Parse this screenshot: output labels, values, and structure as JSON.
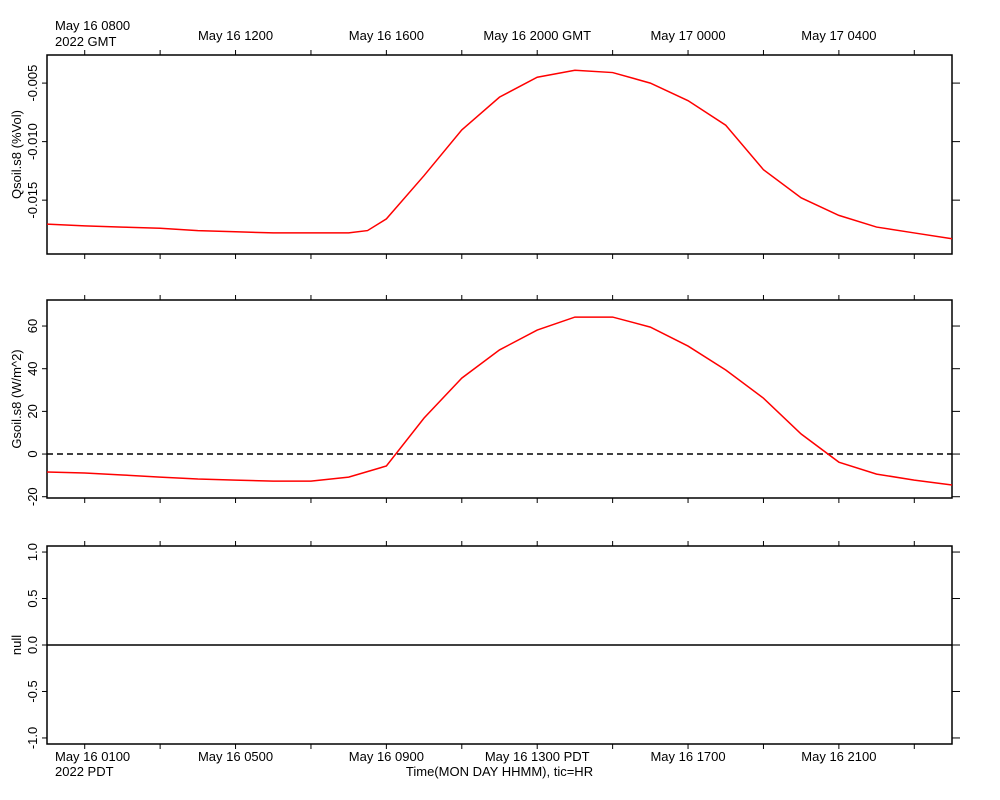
{
  "chart_data": [
    {
      "type": "line",
      "ylabel": "Qsoil.s8 (%Vol)",
      "color": "#ff0000",
      "ylim": [
        -0.0196,
        -0.0026
      ],
      "yticks": [
        -0.015,
        {
          "value": -0.01,
          "label": "-0.010"
        },
        -0.005
      ],
      "xlim": [
        "2022-05-16T07:00Z",
        "2022-05-17T07:00Z"
      ],
      "xticks": [
        {
          "value": "2022-05-16T08:00Z",
          "label": "May 16 0800"
        },
        {
          "value": "2022-05-16T12:00Z",
          "label": "May 16 1200"
        },
        {
          "value": "2022-05-16T16:00Z",
          "label": "May 16 1600"
        },
        {
          "value": "2022-05-16T20:00Z",
          "label": "May 16 2000 GMT"
        },
        {
          "value": "2022-05-17T00:00Z",
          "label": "May 17 0000"
        },
        {
          "value": "2022-05-17T04:00Z",
          "label": "May 17 0400"
        }
      ],
      "xminor": [
        "2022-05-16T10:00Z",
        "2022-05-16T14:00Z",
        "2022-05-16T18:00Z",
        "2022-05-16T22:00Z",
        "2022-05-17T02:00Z",
        "2022-05-17T06:00Z"
      ],
      "x_note": "2022 GMT",
      "x": [
        "2022-05-16T07:00Z",
        "2022-05-16T08:00Z",
        "2022-05-16T09:00Z",
        "2022-05-16T10:00Z",
        "2022-05-16T11:00Z",
        "2022-05-16T12:00Z",
        "2022-05-16T13:00Z",
        "2022-05-16T14:00Z",
        "2022-05-16T15:00Z",
        "2022-05-16T15:30Z",
        "2022-05-16T16:00Z",
        "2022-05-16T17:00Z",
        "2022-05-16T18:00Z",
        "2022-05-16T19:00Z",
        "2022-05-16T20:00Z",
        "2022-05-16T21:00Z",
        "2022-05-16T22:00Z",
        "2022-05-16T23:00Z",
        "2022-05-17T00:00Z",
        "2022-05-17T01:00Z",
        "2022-05-17T02:00Z",
        "2022-05-17T03:00Z",
        "2022-05-17T04:00Z",
        "2022-05-17T05:00Z",
        "2022-05-17T06:00Z",
        "2022-05-17T07:00Z"
      ],
      "values": [
        -0.01705,
        -0.0172,
        -0.0173,
        -0.0174,
        -0.0176,
        -0.0177,
        -0.0178,
        -0.0178,
        -0.0178,
        -0.0176,
        -0.0166,
        -0.0129,
        -0.009,
        -0.0062,
        -0.0045,
        -0.0039,
        -0.0041,
        -0.005,
        -0.0065,
        -0.0086,
        -0.0124,
        -0.0148,
        -0.0163,
        -0.0173,
        -0.0178,
        -0.0183
      ]
    },
    {
      "type": "line",
      "ylabel": "Gsoil.s8 (W/m^2)",
      "color": "#ff0000",
      "zero_line": "dashed",
      "ylim": [
        -20.6,
        72.2
      ],
      "yticks": [
        -20,
        0,
        20,
        40,
        60
      ],
      "xlim": [
        "2022-05-16T07:00Z",
        "2022-05-17T07:00Z"
      ],
      "x": [
        "2022-05-16T07:00Z",
        "2022-05-16T08:00Z",
        "2022-05-16T09:00Z",
        "2022-05-16T10:00Z",
        "2022-05-16T11:00Z",
        "2022-05-16T12:00Z",
        "2022-05-16T13:00Z",
        "2022-05-16T14:00Z",
        "2022-05-16T15:00Z",
        "2022-05-16T16:00Z",
        "2022-05-16T17:00Z",
        "2022-05-16T18:00Z",
        "2022-05-16T19:00Z",
        "2022-05-16T20:00Z",
        "2022-05-16T21:00Z",
        "2022-05-16T22:00Z",
        "2022-05-16T23:00Z",
        "2022-05-17T00:00Z",
        "2022-05-17T01:00Z",
        "2022-05-17T02:00Z",
        "2022-05-17T03:00Z",
        "2022-05-17T04:00Z",
        "2022-05-17T05:00Z",
        "2022-05-17T06:00Z",
        "2022-05-17T07:00Z"
      ],
      "values": [
        -8.4,
        -8.9,
        -9.8,
        -10.8,
        -11.7,
        -12.2,
        -12.7,
        -12.7,
        -10.8,
        -5.6,
        16.9,
        35.6,
        48.8,
        58.1,
        64.2,
        64.2,
        59.5,
        50.6,
        39.4,
        26.2,
        9.4,
        -3.8,
        -9.4,
        -12.2,
        -14.5
      ]
    },
    {
      "type": "empty",
      "ylabel": "null",
      "zero_line": "solid",
      "ylim": [
        -1.065,
        1.065
      ],
      "yticks": [
        {
          "value": -1,
          "label": "-1.0"
        },
        {
          "value": -0.5,
          "label": "-0.5"
        },
        {
          "value": 0,
          "label": "0.0"
        },
        0.5,
        {
          "value": 1,
          "label": "1.0"
        }
      ],
      "xlim": [
        "2022-05-16T07:00Z",
        "2022-05-17T07:00Z"
      ],
      "xticks": [
        {
          "value": "2022-05-16T08:00Z",
          "label": "May 16 0100"
        },
        {
          "value": "2022-05-16T12:00Z",
          "label": "May 16 0500"
        },
        {
          "value": "2022-05-16T16:00Z",
          "label": "May 16 0900"
        },
        {
          "value": "2022-05-16T20:00Z",
          "label": "May 16 1300 PDT"
        },
        {
          "value": "2022-05-17T00:00Z",
          "label": "May 16 1700"
        },
        {
          "value": "2022-05-17T04:00Z",
          "label": "May 16 2100"
        }
      ],
      "x_note": "2022 PDT",
      "xlabel": "Time(MON DAY HHMM), tic=HR"
    }
  ]
}
